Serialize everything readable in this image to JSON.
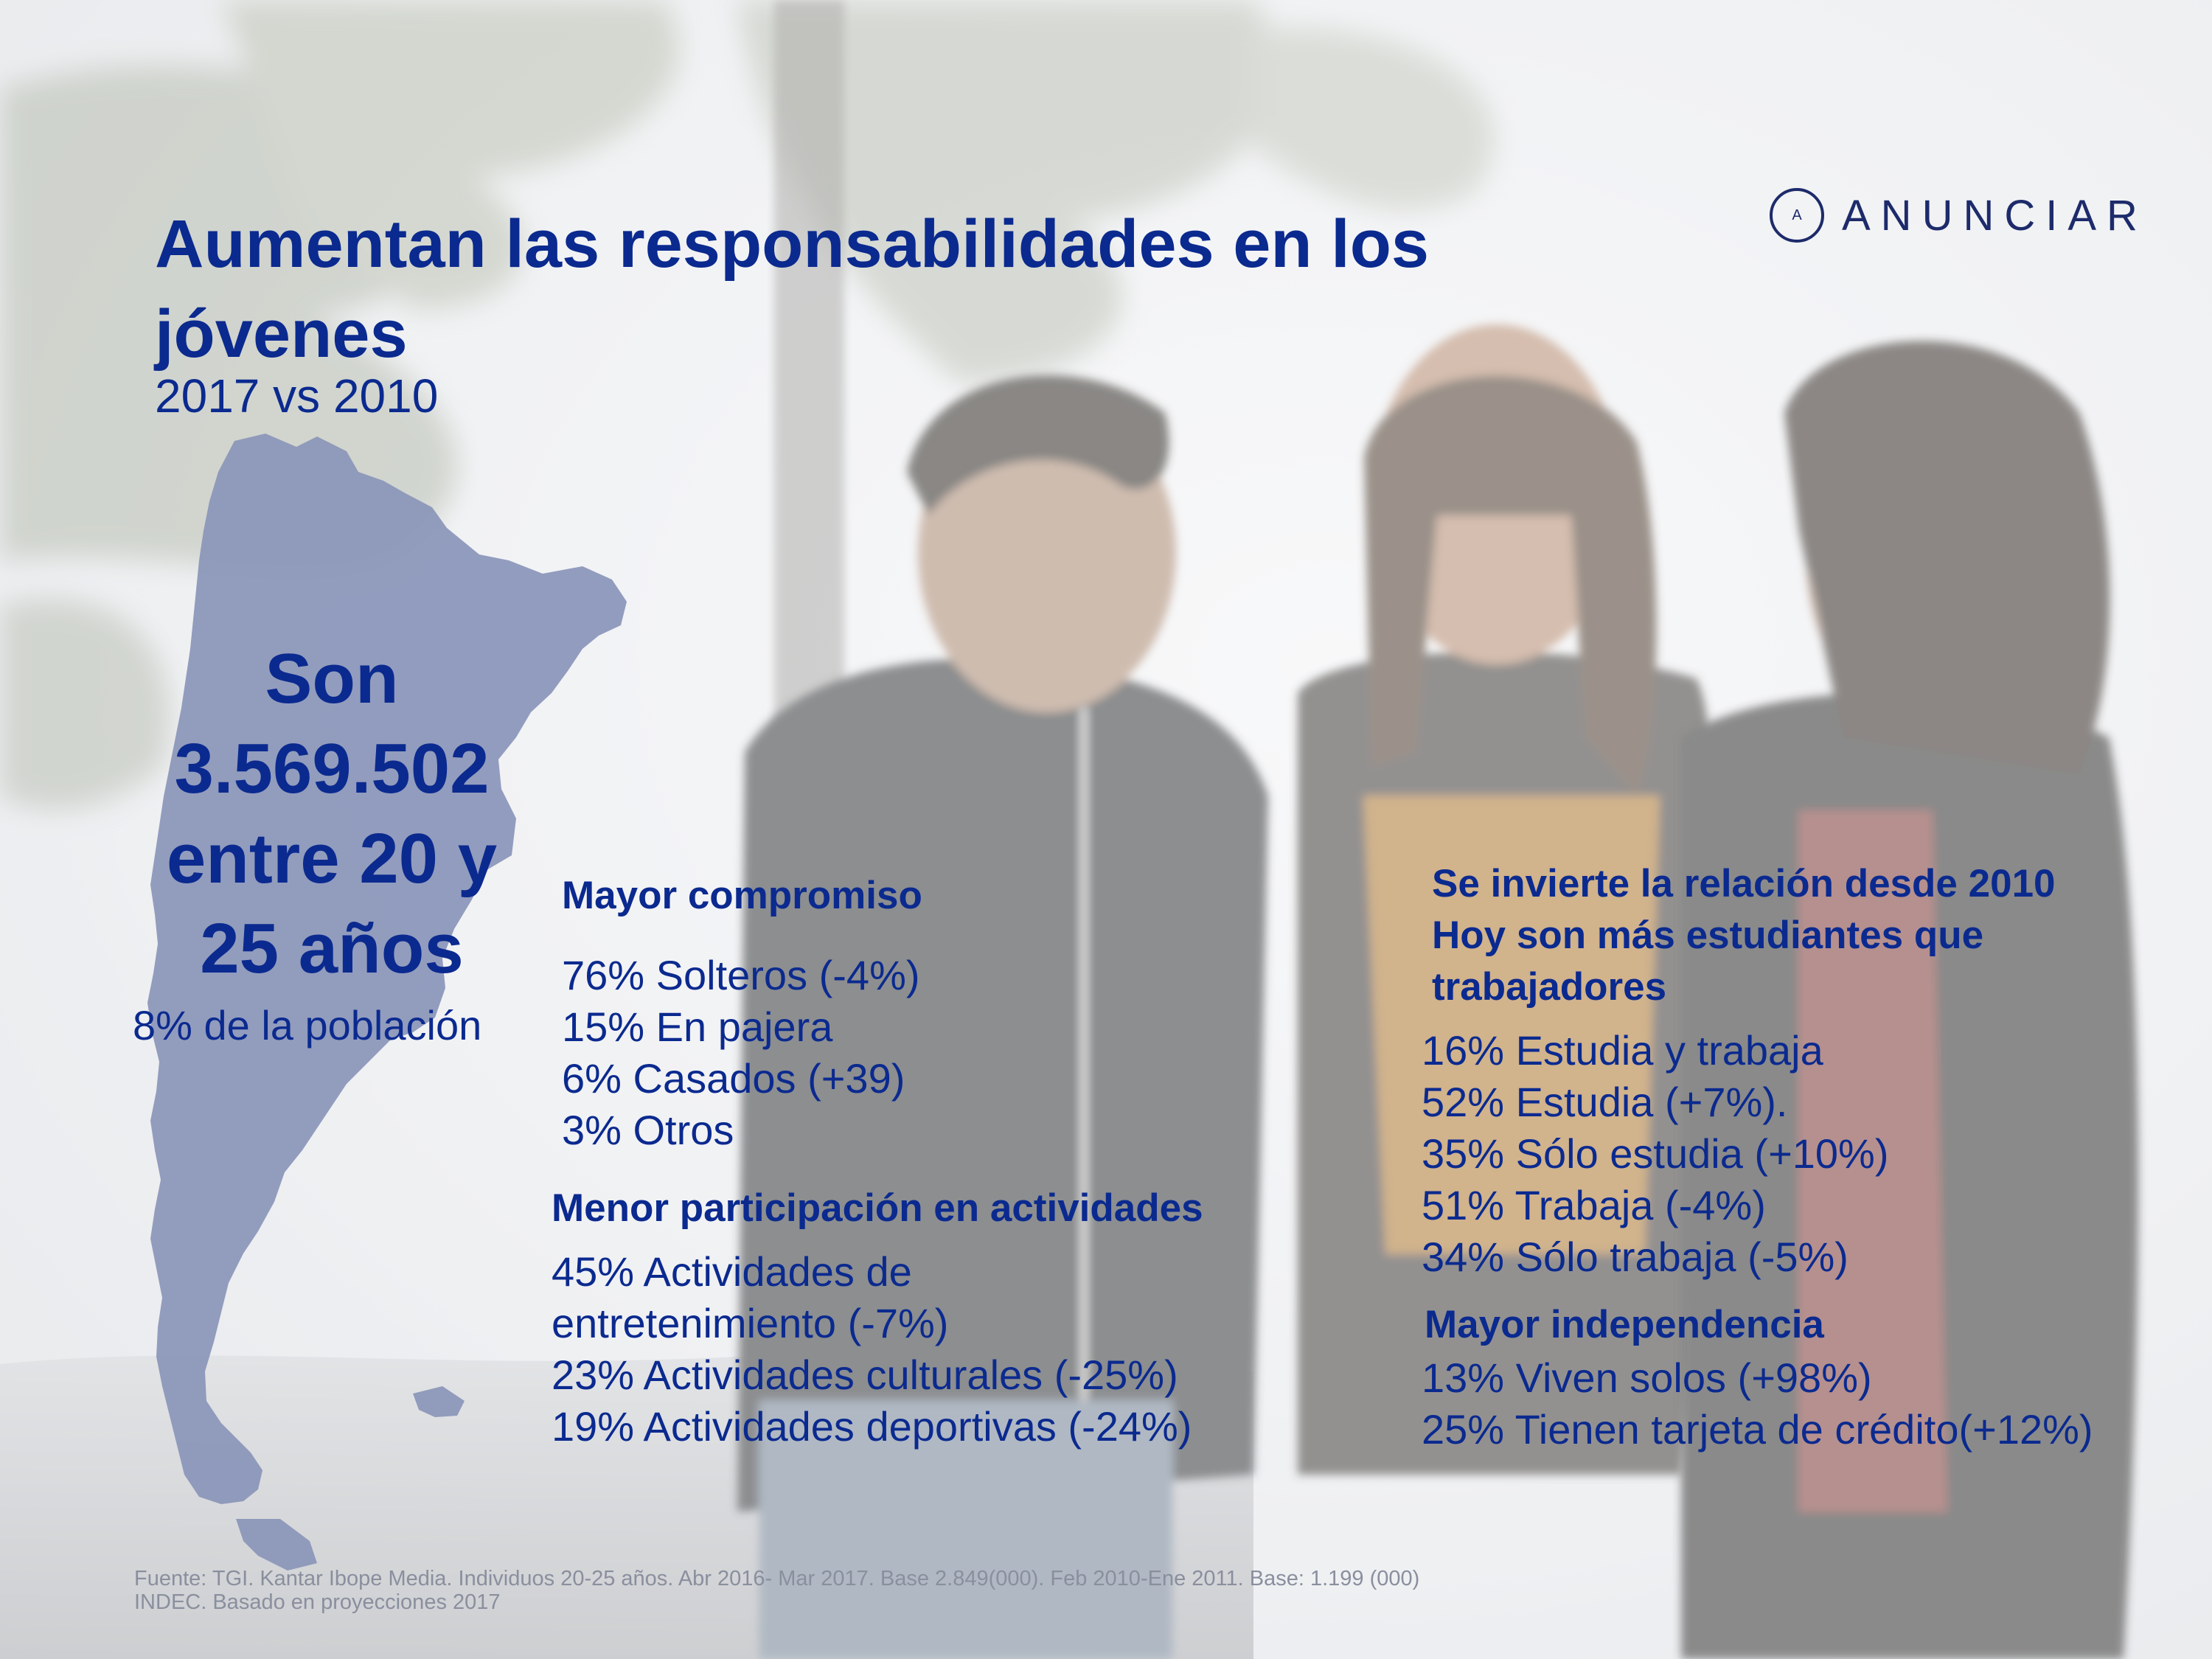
{
  "brand": {
    "logo_mark": "A",
    "name": "ANUNCIAR"
  },
  "header": {
    "title": "Aumentan las responsabilidades en los jóvenes",
    "subtitle": "2017 vs 2010"
  },
  "highlight": {
    "lines": [
      "Son",
      "3.569.502",
      "entre 20 y",
      "25 años"
    ],
    "population_note": "8% de la población"
  },
  "sections": {
    "compromiso": {
      "heading": "Mayor compromiso",
      "items": [
        "76% Solteros (-4%)",
        "15% En pajera",
        "6% Casados (+39)",
        "3% Otros"
      ]
    },
    "actividades": {
      "heading": "Menor participación en actividades",
      "items": [
        "45% Actividades de",
        "entretenimiento (-7%)",
        "23% Actividades culturales (-25%)",
        "19% Actividades deportivas (-24%)"
      ]
    },
    "estudio": {
      "heading_lines": [
        "Se invierte la relación desde 2010",
        "Hoy son más estudiantes que",
        "trabajadores"
      ],
      "items": [
        "16% Estudia y trabaja",
        "52% Estudia (+7%).",
        "35% Sólo estudia (+10%)",
        "51% Trabaja (-4%)",
        "34% Sólo trabaja (-5%)"
      ]
    },
    "independencia": {
      "heading": "Mayor independencia",
      "items": [
        "13% Viven solos (+98%)",
        "25% Tienen tarjeta de crédito(+12%)"
      ]
    }
  },
  "footer": {
    "lines": [
      "Fuente: TGI. Kantar Ibope Media. Individuos 20-25 años. Abr 2016- Mar 2017. Base 2.849(000). Feb 2010-Ene 2011. Base: 1.199 (000)",
      "INDEC. Basado en proyecciones 2017"
    ]
  },
  "colors": {
    "accent": "#0b2a8f",
    "map": "#8a95b8",
    "logo": "#1d2b6b",
    "footer": "#8a8f9e"
  }
}
